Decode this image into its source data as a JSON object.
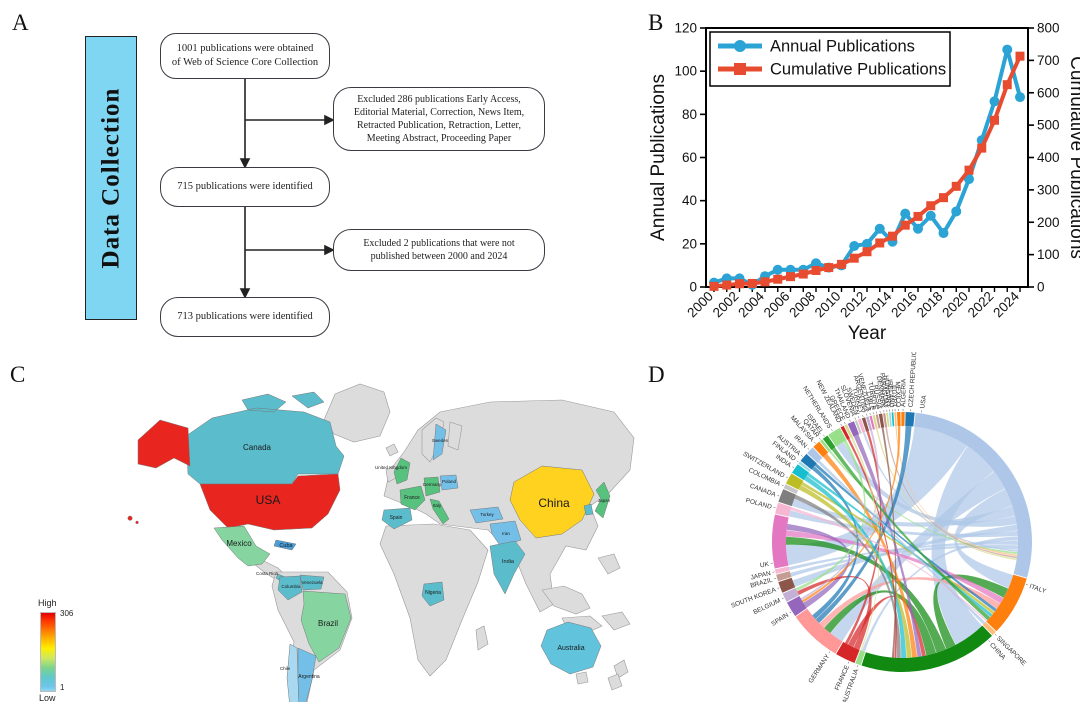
{
  "panels": {
    "a": {
      "label": "A",
      "sidebar_title": "Data Collection",
      "sidebar_color": "#7FD6F2",
      "boxes": [
        "1001 publications were obtained of Web of Science Core Collection",
        "Excluded 286 publications Early Access, Editorial Material, Correction, News Item, Retracted Publication, Retraction, Letter, Meeting Abstract, Proceeding Paper",
        "715 publications were identified",
        "Excluded 2 publications that were not published between 2000 and 2024",
        "713 publications were identified"
      ]
    },
    "b": {
      "label": "B"
    },
    "c": {
      "label": "C",
      "legend": {
        "high_label": "High",
        "low_label": "Low",
        "max_value": "306",
        "min_value": "1"
      },
      "countries": [
        {
          "id": "canada",
          "label": "Canada",
          "color": "#5BBCCC"
        },
        {
          "id": "alaska",
          "label": "",
          "color": "#E8251F"
        },
        {
          "id": "usa",
          "label": "USA",
          "color": "#E8251F"
        },
        {
          "id": "mexico",
          "label": "Mexico",
          "color": "#86D5A0"
        },
        {
          "id": "cuba",
          "label": "Cuba",
          "color": "#4A9FD8"
        },
        {
          "id": "costarica",
          "label": "Costa Rica",
          "color": "#5BBCCC"
        },
        {
          "id": "venezuela",
          "label": "Venezuela",
          "color": "#5BBCCC"
        },
        {
          "id": "colombia",
          "label": "Columbia",
          "color": "#5BBCCC"
        },
        {
          "id": "brazil",
          "label": "Brazil",
          "color": "#86D5A0"
        },
        {
          "id": "chile",
          "label": "Chile",
          "color": "#A9D9F0"
        },
        {
          "id": "argentina",
          "label": "Argentina",
          "color": "#74BFE8"
        },
        {
          "id": "uk",
          "label": "United Kingdom",
          "color": "#57C17E"
        },
        {
          "id": "sweden",
          "label": "Sweden",
          "color": "#74BFE8"
        },
        {
          "id": "poland",
          "label": "Poland",
          "color": "#74BFE8"
        },
        {
          "id": "germany",
          "label": "Germany",
          "color": "#57C17E"
        },
        {
          "id": "france",
          "label": "France",
          "color": "#57C17E"
        },
        {
          "id": "spain",
          "label": "Spain",
          "color": "#5BBCCC"
        },
        {
          "id": "italy",
          "label": "Italy",
          "color": "#57C17E"
        },
        {
          "id": "turkey",
          "label": "Turkey",
          "color": "#74BFE8"
        },
        {
          "id": "iran",
          "label": "Iran",
          "color": "#74BFE8"
        },
        {
          "id": "nigeria",
          "label": "Nigeria",
          "color": "#5BBCCC"
        },
        {
          "id": "india",
          "label": "India",
          "color": "#5BBCCC"
        },
        {
          "id": "china",
          "label": "China",
          "color": "#FFD21F"
        },
        {
          "id": "southkorea",
          "label": "",
          "color": "#5BBCCC"
        },
        {
          "id": "japan",
          "label": "Japan",
          "color": "#57C17E"
        },
        {
          "id": "australia",
          "label": "Australia",
          "color": "#62C3DC"
        },
        {
          "id": "hawaii",
          "label": "",
          "color": "#E8251F"
        }
      ]
    },
    "d": {
      "label": "D",
      "countries": [
        {
          "name": "USA",
          "size": 100,
          "color": "#aec7e8"
        },
        {
          "name": "ITALY",
          "size": 27,
          "color": "#ff7f0e"
        },
        {
          "name": "SINGAPORE",
          "size": 2,
          "color": "#ffbb78"
        },
        {
          "name": "CHINA",
          "size": 62,
          "color": "#128a12"
        },
        {
          "name": "AUSTRALIA",
          "size": 2.5,
          "color": "#98df8a"
        },
        {
          "name": "FRANCE",
          "size": 9,
          "color": "#d62728"
        },
        {
          "name": "GERMANY",
          "size": 24,
          "color": "#ff9896"
        },
        {
          "name": "SPAIN",
          "size": 7,
          "color": "#9467bd"
        },
        {
          "name": "BELGIUM",
          "size": 4,
          "color": "#c5b0d5"
        },
        {
          "name": "SOUTH KOREA",
          "size": 5,
          "color": "#8c564b"
        },
        {
          "name": "BRAZIL",
          "size": 3,
          "color": "#c49c94"
        },
        {
          "name": "JAPAN",
          "size": 2,
          "color": "#f7b6d2"
        },
        {
          "name": "UK",
          "size": 24,
          "color": "#e377c2"
        },
        {
          "name": "POLAND",
          "size": 5,
          "color": "#f7b6d2"
        },
        {
          "name": "CANADA",
          "size": 6,
          "color": "#7f7f7f"
        },
        {
          "name": "COLOMBIA",
          "size": 2,
          "color": "#c7c7c7"
        },
        {
          "name": "SWITZERLAND",
          "size": 5,
          "color": "#bcbd22"
        },
        {
          "name": "INDIA",
          "size": 4.5,
          "color": "#17becf"
        },
        {
          "name": "FINLAND",
          "size": 1.2,
          "color": "#9edae5"
        },
        {
          "name": "AUSTRIA",
          "size": 4,
          "color": "#1f77b4"
        },
        {
          "name": "IRAN",
          "size": 3.5,
          "color": "#aec7e8"
        },
        {
          "name": "MALAYSIA",
          "size": 3.5,
          "color": "#ff7f0e"
        },
        {
          "name": "QATAR",
          "size": 1.2,
          "color": "#98df8a"
        },
        {
          "name": "ISRAEL",
          "size": 2.5,
          "color": "#2ca02c"
        },
        {
          "name": "NETHERLANDS",
          "size": 6,
          "color": "#98df8a"
        },
        {
          "name": "NEW ZEALAND",
          "size": 1.5,
          "color": "#d62728"
        },
        {
          "name": "GREECE",
          "size": 1.2,
          "color": "#dbdb8d"
        },
        {
          "name": "THAILAND",
          "size": 3,
          "color": "#9467bd"
        },
        {
          "name": "SLOVENIA",
          "size": 1,
          "color": "#c7c7c7"
        },
        {
          "name": "SWEDEN",
          "size": 1.5,
          "color": "#f7b6d2"
        },
        {
          "name": "TURKEY",
          "size": 1.5,
          "color": "#8c564b"
        },
        {
          "name": "ARGENTINA",
          "size": 1.2,
          "color": "#c5b0d5"
        },
        {
          "name": "VENEZUELA",
          "size": 1,
          "color": "#e377c2"
        },
        {
          "name": "CHILE",
          "size": 1,
          "color": "#dbdb8d"
        },
        {
          "name": "TURKIYE",
          "size": 1,
          "color": "#c49c94"
        },
        {
          "name": "RUSSIA",
          "size": 1.5,
          "color": "#8c564b"
        },
        {
          "name": "DENMARK",
          "size": 1,
          "color": "#c49c94"
        },
        {
          "name": "PARAGUAY",
          "size": 0.8,
          "color": "#dbdb8d"
        },
        {
          "name": "HUNGARY",
          "size": 0.8,
          "color": "#9edae5"
        },
        {
          "name": "IRELAND",
          "size": 0.8,
          "color": "#17becf"
        },
        {
          "name": "EGYPT",
          "size": 0.8,
          "color": "#ffbb78"
        },
        {
          "name": "MEXICO",
          "size": 1.5,
          "color": "#ff7f0e"
        },
        {
          "name": "ALGERIA",
          "size": 1.5,
          "color": "#ff7f0e"
        },
        {
          "name": "CZECH REPUBLIC",
          "size": 4,
          "color": "#1f77b4"
        }
      ],
      "chords": [
        [
          "USA",
          "UK",
          28,
          10
        ],
        [
          "USA",
          "CHINA",
          18,
          16
        ],
        [
          "USA",
          "GERMANY",
          10,
          7
        ],
        [
          "USA",
          "ITALY",
          9,
          7
        ],
        [
          "USA",
          "CANADA",
          5,
          3.5
        ],
        [
          "USA",
          "NETHERLANDS",
          4,
          4
        ],
        [
          "USA",
          "SOUTH KOREA",
          3,
          3.5
        ],
        [
          "USA",
          "POLAND",
          2.5,
          3
        ],
        [
          "USA",
          "AUSTRALIA",
          2,
          1.5
        ],
        [
          "USA",
          "JAPAN",
          2,
          1.5
        ],
        [
          "USA",
          "BRAZIL",
          2,
          2
        ],
        [
          "USA",
          "SWEDEN",
          1,
          1
        ],
        [
          "QATAR",
          "USA",
          1,
          1
        ],
        [
          "EGYPT",
          "USA",
          0.8,
          0.8
        ],
        [
          "DENMARK",
          "USA",
          0.8,
          0.8
        ],
        [
          "CHILE",
          "USA",
          0.8,
          0.8
        ],
        [
          "CHINA",
          "ITALY",
          5,
          5
        ],
        [
          "CHINA",
          "UK",
          5,
          4
        ],
        [
          "CHINA",
          "GERMANY",
          5,
          4
        ],
        [
          "UK",
          "ITALY",
          3,
          3
        ],
        [
          "SPAIN",
          "UK",
          3,
          3
        ],
        [
          "GERMANY",
          "ITALY",
          3,
          3
        ],
        [
          "CZECH REPUBLIC",
          "GERMANY",
          3,
          2.5
        ],
        [
          "FRANCE",
          "BELGIUM",
          3,
          2
        ],
        [
          "FRANCE",
          "CHINA",
          3,
          2
        ],
        [
          "FRANCE",
          "TURKEY",
          1.5,
          1.2
        ],
        [
          "AUSTRIA",
          "GERMANY",
          2,
          2.5
        ],
        [
          "AUSTRIA",
          "ITALY",
          1.5,
          1.5
        ],
        [
          "THAILAND",
          "CHINA",
          2.5,
          2
        ],
        [
          "MALAYSIA",
          "CHINA",
          2.5,
          2.5
        ],
        [
          "SWITZERLAND",
          "CHINA",
          2.5,
          2.5
        ],
        [
          "SWITZERLAND",
          "ITALY",
          1.5,
          1.5
        ],
        [
          "INDIA",
          "CHINA",
          2.5,
          2.5
        ],
        [
          "INDIA",
          "ITALY",
          1.5,
          1.5
        ],
        [
          "CANADA",
          "CHINA",
          2.5,
          2
        ],
        [
          "ISRAEL",
          "ITALY",
          2,
          2
        ],
        [
          "NEW ZEALAND",
          "CHINA",
          1.2,
          1
        ],
        [
          "IRAN",
          "SINGAPORE",
          1.5,
          1.5
        ],
        [
          "NETHERLANDS",
          "BELGIUM",
          1.5,
          1.5
        ],
        [
          "MEXICO",
          "SPAIN",
          1.2,
          1.2
        ],
        [
          "POLAND",
          "ITALY",
          1.5,
          1.5
        ],
        [
          "ARGENTINA",
          "SPAIN",
          1,
          1
        ],
        [
          "RUSSIA",
          "CHINA",
          1,
          1
        ],
        [
          "GREECE",
          "AUSTRALIA",
          1,
          1
        ]
      ]
    }
  },
  "chart_data": {
    "type": "line",
    "title": "",
    "xlabel": "Year",
    "ylabel_left": "Annual Publications",
    "ylabel_right": "Cumulative Publications",
    "x": [
      2000,
      2001,
      2002,
      2003,
      2004,
      2005,
      2006,
      2007,
      2008,
      2009,
      2010,
      2011,
      2012,
      2013,
      2014,
      2015,
      2016,
      2017,
      2018,
      2019,
      2020,
      2021,
      2022,
      2023,
      2024
    ],
    "series": [
      {
        "name": "Annual Publications",
        "axis": "left",
        "color": "#2BA3D4",
        "marker": "circle",
        "values": [
          2,
          4,
          4,
          1,
          5,
          8,
          8,
          8,
          11,
          9,
          10,
          19,
          20,
          27,
          21,
          34,
          27,
          33,
          25,
          35,
          50,
          68,
          86,
          110,
          88
        ]
      },
      {
        "name": "Cumulative Publications",
        "axis": "right",
        "color": "#E84C30",
        "marker": "square",
        "values": [
          2,
          6,
          10,
          11,
          16,
          24,
          32,
          40,
          51,
          60,
          70,
          89,
          109,
          136,
          157,
          191,
          218,
          251,
          276,
          311,
          361,
          429,
          515,
          625,
          713
        ]
      }
    ],
    "ylim_left": [
      0,
      120
    ],
    "ylim_right": [
      0,
      800
    ],
    "yticks_left": [
      0,
      20,
      40,
      60,
      80,
      100,
      120
    ],
    "yticks_right": [
      0,
      100,
      200,
      300,
      400,
      500,
      600,
      700,
      800
    ],
    "xtick_label_step": 2,
    "grid": false,
    "legend_position": "top-left"
  }
}
